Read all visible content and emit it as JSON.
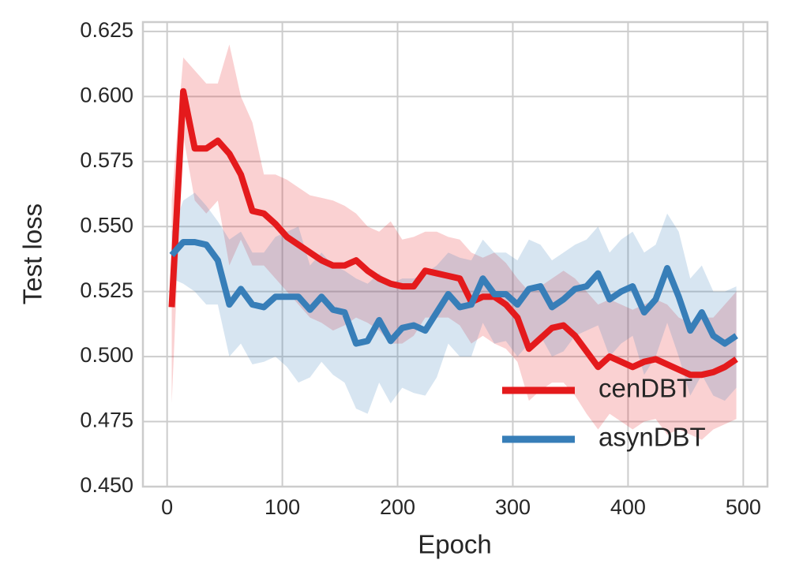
{
  "chart_data": {
    "type": "line",
    "xlabel": "Epoch",
    "ylabel": "Test loss",
    "x": [
      4,
      14,
      24,
      34,
      44,
      54,
      64,
      74,
      84,
      94,
      104,
      114,
      124,
      134,
      144,
      154,
      164,
      174,
      184,
      194,
      204,
      214,
      224,
      234,
      244,
      254,
      264,
      274,
      284,
      294,
      304,
      314,
      324,
      334,
      344,
      354,
      364,
      374,
      384,
      394,
      404,
      414,
      424,
      434,
      444,
      454,
      464,
      474,
      484,
      494
    ],
    "series": [
      {
        "name": "cenDBT",
        "color": "#e41a1c",
        "values": [
          0.519,
          0.602,
          0.58,
          0.58,
          0.583,
          0.578,
          0.57,
          0.556,
          0.555,
          0.551,
          0.546,
          0.543,
          0.54,
          0.537,
          0.535,
          0.535,
          0.537,
          0.533,
          0.53,
          0.528,
          0.527,
          0.527,
          0.533,
          0.532,
          0.531,
          0.53,
          0.521,
          0.523,
          0.523,
          0.52,
          0.515,
          0.503,
          0.507,
          0.511,
          0.512,
          0.508,
          0.502,
          0.496,
          0.5,
          0.498,
          0.496,
          0.498,
          0.499,
          0.497,
          0.495,
          0.493,
          0.493,
          0.494,
          0.496,
          0.499
        ],
        "upper": [
          0.56,
          0.615,
          0.61,
          0.605,
          0.605,
          0.62,
          0.6,
          0.59,
          0.57,
          0.57,
          0.568,
          0.565,
          0.562,
          0.561,
          0.56,
          0.558,
          0.555,
          0.55,
          0.548,
          0.552,
          0.545,
          0.546,
          0.548,
          0.548,
          0.546,
          0.545,
          0.54,
          0.538,
          0.54,
          0.536,
          0.53,
          0.525,
          0.527,
          0.53,
          0.533,
          0.53,
          0.525,
          0.52,
          0.522,
          0.52,
          0.518,
          0.52,
          0.522,
          0.52,
          0.515,
          0.513,
          0.515,
          0.515,
          0.52,
          0.525
        ],
        "lower": [
          0.482,
          0.585,
          0.56,
          0.555,
          0.56,
          0.535,
          0.545,
          0.535,
          0.535,
          0.53,
          0.525,
          0.52,
          0.515,
          0.513,
          0.51,
          0.512,
          0.515,
          0.513,
          0.51,
          0.505,
          0.505,
          0.508,
          0.515,
          0.515,
          0.515,
          0.512,
          0.505,
          0.508,
          0.505,
          0.503,
          0.498,
          0.483,
          0.487,
          0.49,
          0.49,
          0.485,
          0.478,
          0.472,
          0.478,
          0.475,
          0.472,
          0.475,
          0.476,
          0.47,
          0.472,
          0.47,
          0.468,
          0.472,
          0.474,
          0.476
        ]
      },
      {
        "name": "asynDBT",
        "color": "#377eb8",
        "values": [
          0.539,
          0.544,
          0.544,
          0.543,
          0.537,
          0.52,
          0.526,
          0.52,
          0.519,
          0.523,
          0.523,
          0.523,
          0.518,
          0.523,
          0.518,
          0.517,
          0.505,
          0.506,
          0.514,
          0.506,
          0.511,
          0.512,
          0.51,
          0.517,
          0.524,
          0.519,
          0.52,
          0.53,
          0.524,
          0.524,
          0.52,
          0.526,
          0.527,
          0.519,
          0.522,
          0.526,
          0.527,
          0.532,
          0.522,
          0.525,
          0.527,
          0.517,
          0.522,
          0.534,
          0.523,
          0.51,
          0.517,
          0.508,
          0.505,
          0.508
        ],
        "upper": [
          0.548,
          0.56,
          0.563,
          0.558,
          0.552,
          0.545,
          0.548,
          0.54,
          0.54,
          0.546,
          0.548,
          0.55,
          0.535,
          0.54,
          0.535,
          0.533,
          0.53,
          0.528,
          0.532,
          0.528,
          0.53,
          0.53,
          0.532,
          0.535,
          0.54,
          0.538,
          0.537,
          0.545,
          0.54,
          0.54,
          0.537,
          0.545,
          0.543,
          0.537,
          0.54,
          0.543,
          0.545,
          0.55,
          0.54,
          0.545,
          0.548,
          0.54,
          0.543,
          0.555,
          0.548,
          0.53,
          0.535,
          0.525,
          0.525,
          0.527
        ],
        "lower": [
          0.53,
          0.528,
          0.525,
          0.52,
          0.52,
          0.5,
          0.505,
          0.497,
          0.498,
          0.5,
          0.496,
          0.49,
          0.492,
          0.498,
          0.493,
          0.49,
          0.48,
          0.478,
          0.49,
          0.482,
          0.488,
          0.486,
          0.485,
          0.492,
          0.505,
          0.5,
          0.5,
          0.513,
          0.505,
          0.506,
          0.5,
          0.505,
          0.508,
          0.5,
          0.502,
          0.508,
          0.51,
          0.512,
          0.5,
          0.505,
          0.508,
          0.493,
          0.5,
          0.513,
          0.5,
          0.485,
          0.493,
          0.485,
          0.483,
          0.488
        ]
      }
    ],
    "xlim": [
      -21,
      521
    ],
    "ylim": [
      0.45,
      0.6286
    ],
    "xticks": [
      0,
      100,
      200,
      300,
      400,
      500
    ],
    "yticks": [
      {
        "value": 0.45,
        "label": "0.450"
      },
      {
        "value": 0.475,
        "label": "0.475"
      },
      {
        "value": 0.5,
        "label": "0.500"
      },
      {
        "value": 0.525,
        "label": "0.525"
      },
      {
        "value": 0.55,
        "label": "0.550"
      },
      {
        "value": 0.575,
        "label": "0.575"
      },
      {
        "value": 0.6,
        "label": "0.600"
      },
      {
        "value": 0.625,
        "label": "0.625"
      }
    ],
    "grid": true,
    "legend": "lower right"
  }
}
